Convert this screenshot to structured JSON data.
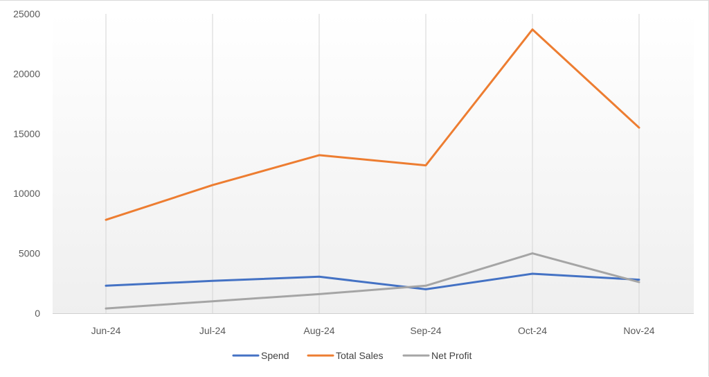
{
  "chart_data": {
    "type": "line",
    "title": "",
    "xlabel": "",
    "ylabel": "",
    "categories": [
      "Jun-24",
      "Jul-24",
      "Aug-24",
      "Sep-24",
      "Oct-24",
      "Nov-24"
    ],
    "ylim": [
      0,
      25000
    ],
    "yticks": [
      0,
      5000,
      10000,
      15000,
      20000,
      25000
    ],
    "grid": "vertical",
    "legend": "bottom",
    "series": [
      {
        "name": "Spend",
        "color": "#4472C4",
        "values": [
          2300,
          2700,
          3050,
          2000,
          3300,
          2800
        ]
      },
      {
        "name": "Total Sales",
        "color": "#ED7D31",
        "values": [
          7800,
          10700,
          13200,
          12350,
          23700,
          15500
        ]
      },
      {
        "name": "Net Profit",
        "color": "#A5A5A5",
        "values": [
          400,
          1000,
          1600,
          2300,
          5000,
          2600
        ]
      }
    ]
  }
}
